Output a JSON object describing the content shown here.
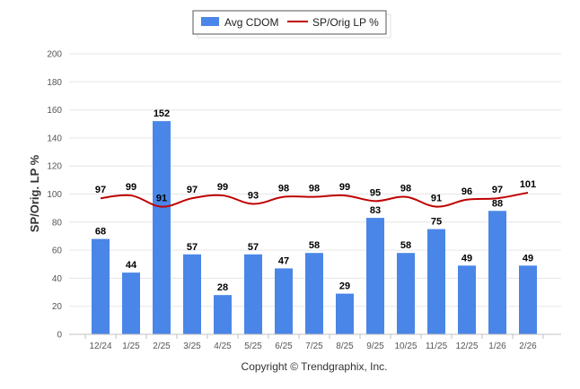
{
  "chart_data": {
    "type": "bar",
    "title": "",
    "xlabel": "",
    "ylabel": "SP/Orig. LP %",
    "ylim": [
      0,
      200
    ],
    "yticks": [
      0,
      20,
      40,
      60,
      80,
      100,
      120,
      140,
      160,
      180,
      200
    ],
    "grid": true,
    "legend_position": "top-center",
    "categories": [
      "12/24",
      "1/25",
      "2/25",
      "3/25",
      "4/25",
      "5/25",
      "6/25",
      "7/25",
      "8/25",
      "9/25",
      "10/25",
      "11/25",
      "12/25",
      "1/26",
      "2/26"
    ],
    "series": [
      {
        "name": "Avg CDOM",
        "type": "bar",
        "color": "#4a86e8",
        "values": [
          68,
          44,
          152,
          57,
          28,
          57,
          47,
          58,
          29,
          83,
          58,
          75,
          49,
          88,
          49
        ]
      },
      {
        "name": "SP/Orig LP %",
        "type": "line",
        "color": "#c00000",
        "values": [
          97,
          99,
          91,
          97,
          99,
          93,
          98,
          98,
          99,
          95,
          98,
          91,
          96,
          97,
          101
        ]
      }
    ],
    "credit": "Copyright © Trendgraphix, Inc."
  }
}
